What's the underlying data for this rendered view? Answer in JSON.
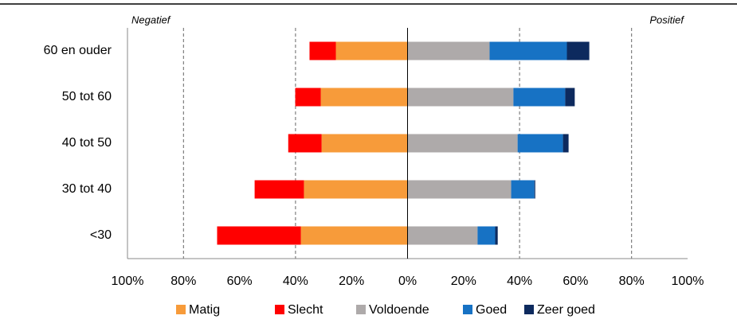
{
  "chart_data": {
    "type": "diverging_bar",
    "annotations": [
      "Negatief",
      "Positief"
    ],
    "categories": [
      "60 en ouder",
      "50 tot 60",
      "40 tot 50",
      "30 tot 40",
      "<30"
    ],
    "series": [
      {
        "name": "Matig",
        "color": "#f79b3a",
        "values": [
          -25.6,
          -31.0,
          -30.7,
          -37.0,
          -38.1
        ]
      },
      {
        "name": "Slecht",
        "color": "#ff0000",
        "values": [
          -9.4,
          -9.1,
          -11.9,
          -17.6,
          -29.9
        ]
      },
      {
        "name": "Voldoende",
        "color": "#aeaaaa",
        "values": [
          29.3,
          37.8,
          39.3,
          37.0,
          25.0
        ]
      },
      {
        "name": "Goed",
        "color": "#1772c4",
        "values": [
          27.6,
          18.5,
          16.2,
          8.3,
          6.3
        ]
      },
      {
        "name": "Zeer goed",
        "color": "#0d2a5e",
        "values": [
          8.0,
          3.4,
          2.0,
          0.3,
          0.9
        ]
      }
    ],
    "xlim": [
      -100,
      100
    ],
    "xticks": [
      {
        "value": -100,
        "label": "100%"
      },
      {
        "value": -80,
        "label": "80%"
      },
      {
        "value": -60,
        "label": "60%"
      },
      {
        "value": -40,
        "label": "40%"
      },
      {
        "value": -20,
        "label": "20%"
      },
      {
        "value": 0,
        "label": "0%"
      },
      {
        "value": 20,
        "label": "20%"
      },
      {
        "value": 40,
        "label": "40%"
      },
      {
        "value": 60,
        "label": "60%"
      },
      {
        "value": 80,
        "label": "80%"
      },
      {
        "value": 100,
        "label": "100%"
      }
    ],
    "gridlines": [
      -80,
      -40,
      40,
      80
    ],
    "legend": "bottom"
  }
}
